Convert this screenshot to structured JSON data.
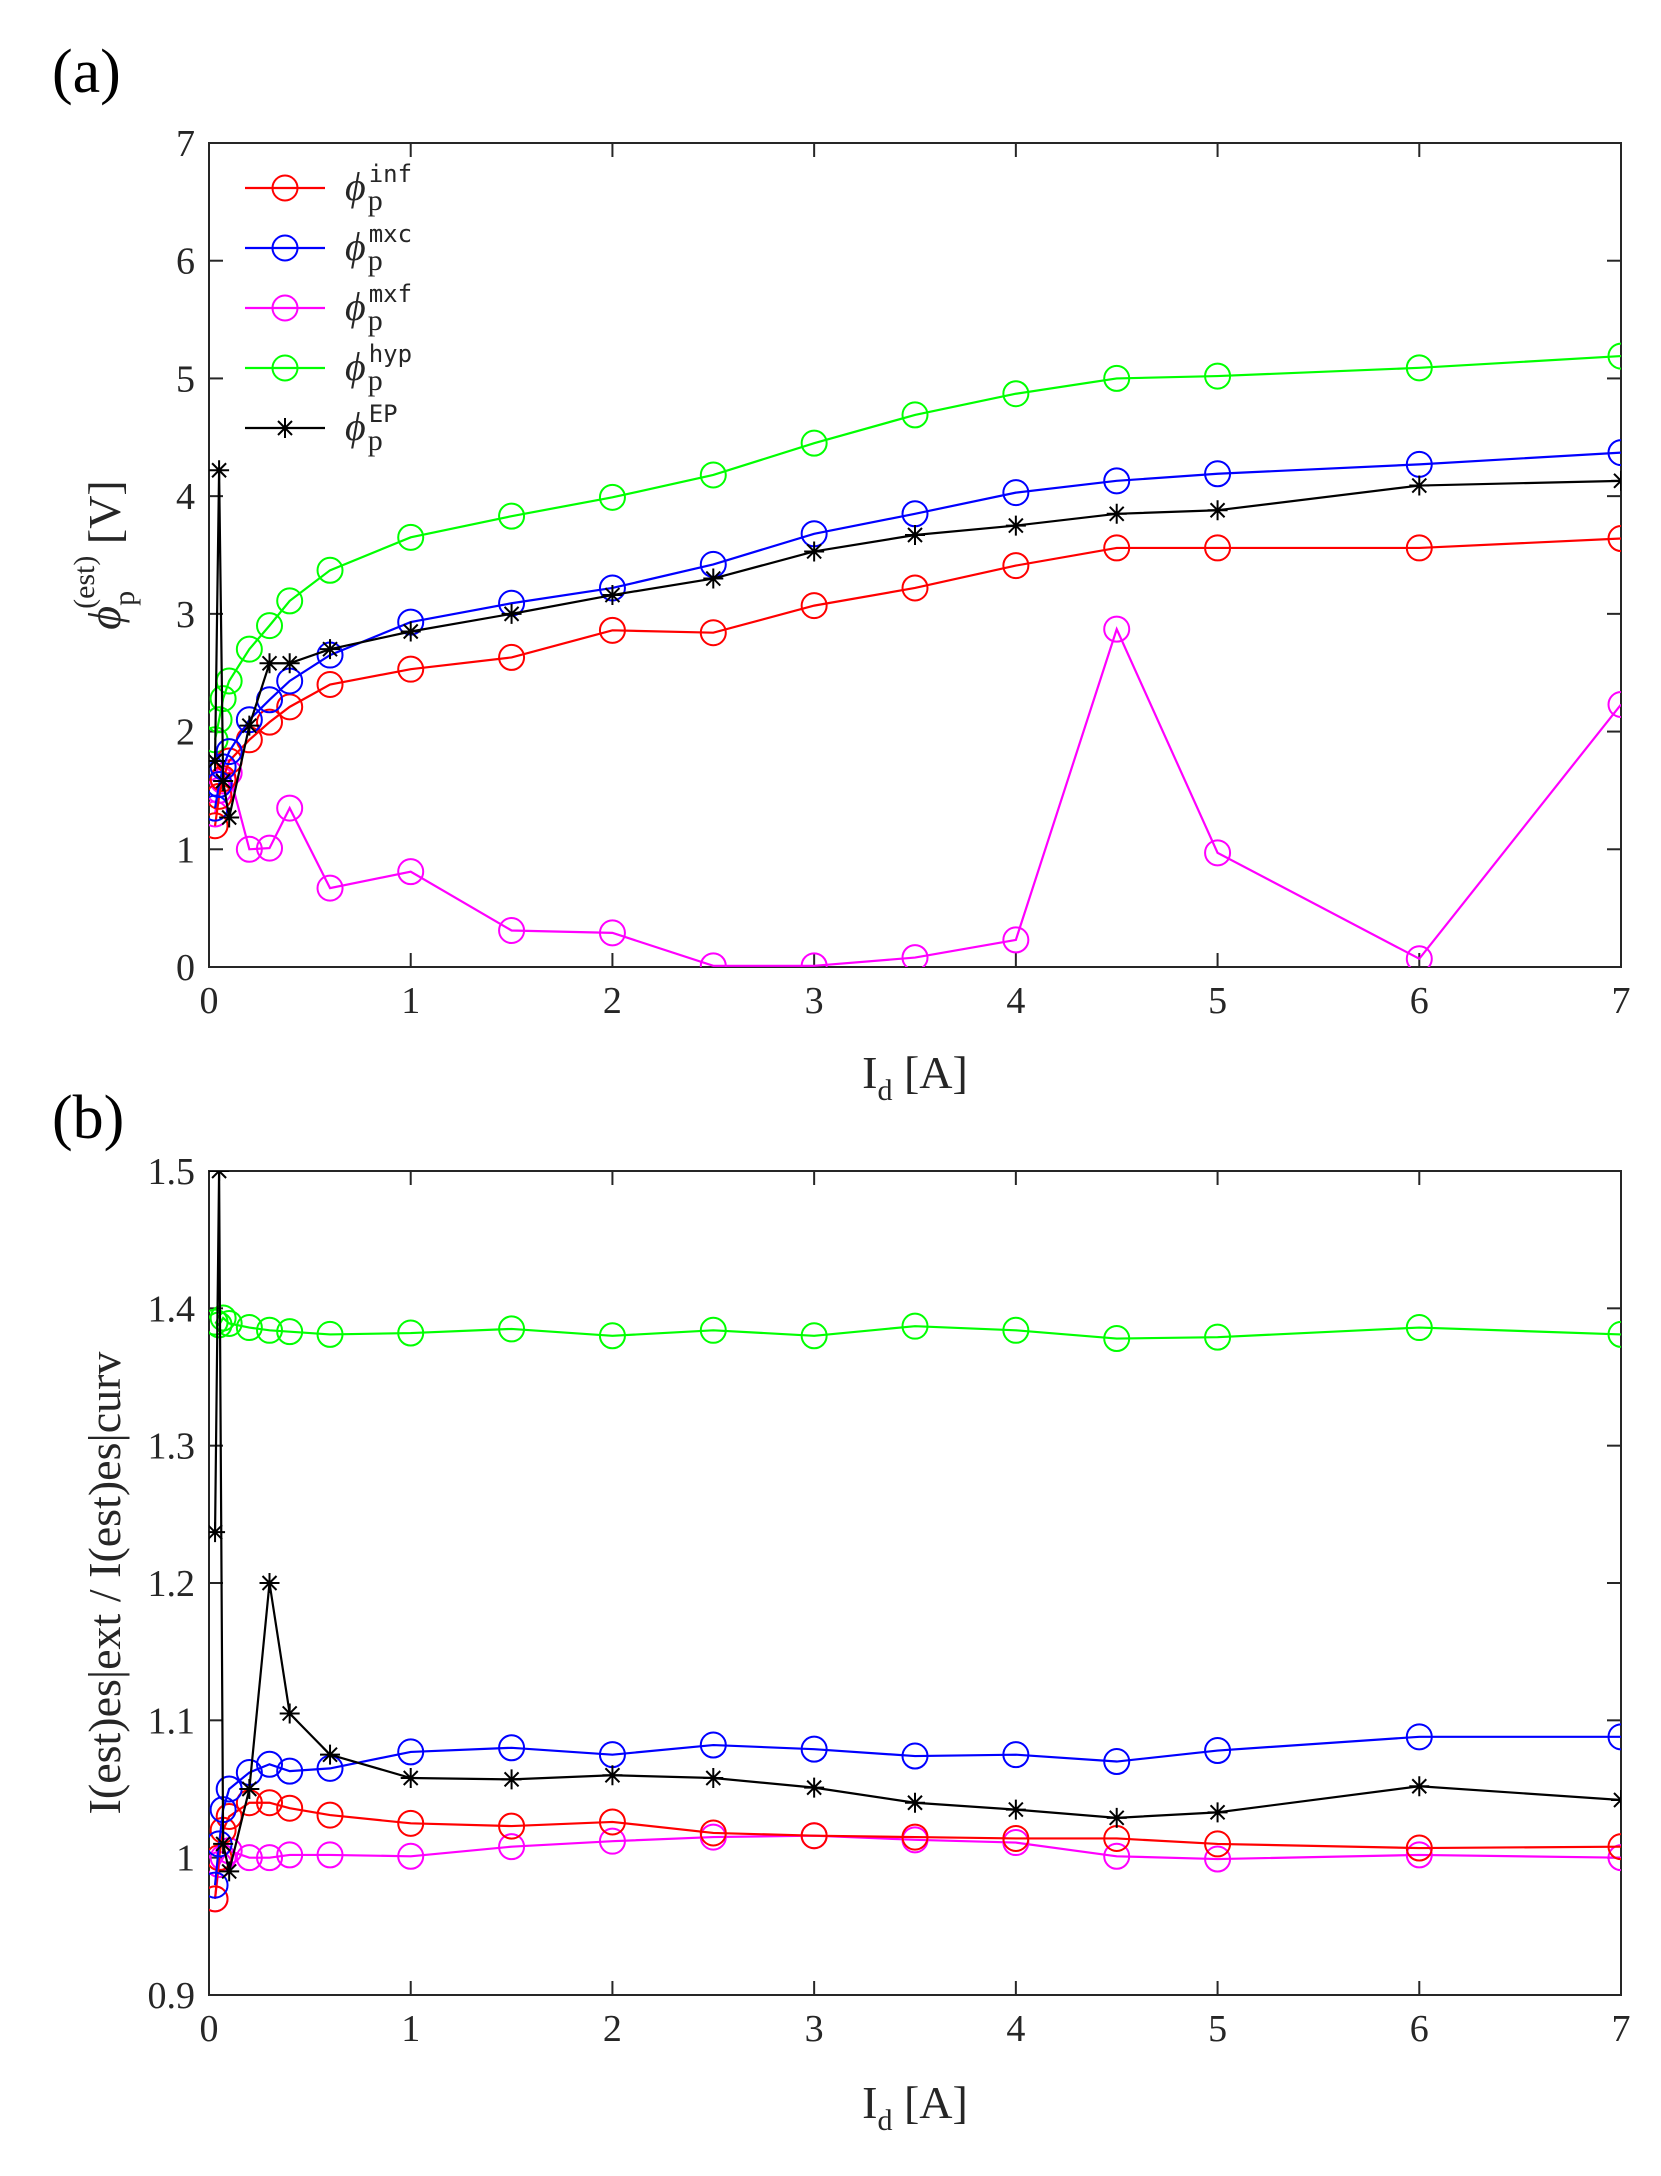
{
  "chart_data": [
    {
      "type": "line",
      "panel": "(a)",
      "xlabel": {
        "main": "I",
        "sub": "d",
        "unit": " [A]"
      },
      "ylabel": {
        "main": "ϕ",
        "sub": "p",
        "sup": "(est)",
        "unit": " [V]"
      },
      "xlim": [
        0,
        7
      ],
      "ylim": [
        0,
        7
      ],
      "xticks": [
        "0",
        "1",
        "2",
        "3",
        "4",
        "5",
        "6",
        "7"
      ],
      "yticks": [
        "0",
        "1",
        "2",
        "3",
        "4",
        "5",
        "6",
        "7"
      ],
      "grid": false,
      "legend_position": "top-left",
      "series": [
        {
          "name": "inf",
          "label_base": "ϕ",
          "label_sub": "p",
          "label_sup": "inf",
          "color": "#ff0000",
          "marker": "circle",
          "x": [
            0.03,
            0.05,
            0.07,
            0.1,
            0.2,
            0.3,
            0.4,
            0.6,
            1,
            1.5,
            2,
            2.5,
            3,
            3.5,
            4,
            4.5,
            5,
            6,
            7
          ],
          "y": [
            1.2,
            1.45,
            1.6,
            1.75,
            1.93,
            2.08,
            2.21,
            2.4,
            2.53,
            2.63,
            2.86,
            2.84,
            3.07,
            3.22,
            3.41,
            3.56,
            3.56,
            3.56,
            3.64
          ]
        },
        {
          "name": "mxc",
          "label_base": "ϕ",
          "label_sub": "p",
          "label_sup": "mxc",
          "color": "#0000ff",
          "marker": "circle",
          "x": [
            0.03,
            0.05,
            0.07,
            0.1,
            0.2,
            0.3,
            0.4,
            0.6,
            1,
            1.5,
            2,
            2.5,
            3,
            3.5,
            4,
            4.5,
            5,
            6,
            7
          ],
          "y": [
            1.35,
            1.55,
            1.7,
            1.83,
            2.1,
            2.27,
            2.43,
            2.65,
            2.93,
            3.09,
            3.22,
            3.42,
            3.68,
            3.85,
            4.03,
            4.13,
            4.19,
            4.27,
            4.37
          ]
        },
        {
          "name": "mxf",
          "label_base": "ϕ",
          "label_sub": "p",
          "label_sup": "mxf",
          "color": "#ff00ff",
          "marker": "circle",
          "x": [
            0.03,
            0.05,
            0.07,
            0.1,
            0.2,
            0.3,
            0.4,
            0.6,
            1,
            1.5,
            2,
            2.5,
            3,
            3.5,
            4,
            4.5,
            5,
            6,
            7
          ],
          "y": [
            1.3,
            1.5,
            1.58,
            1.65,
            1.0,
            1.01,
            1.35,
            0.67,
            0.81,
            0.31,
            0.29,
            0.01,
            0.01,
            0.08,
            0.23,
            2.87,
            0.97,
            0.07,
            2.23
          ]
        },
        {
          "name": "hyp",
          "label_base": "ϕ",
          "label_sub": "p",
          "label_sup": "hyp",
          "color": "#00ff00",
          "marker": "circle",
          "x": [
            0.03,
            0.05,
            0.07,
            0.1,
            0.2,
            0.3,
            0.4,
            0.6,
            1,
            1.5,
            2,
            2.5,
            3,
            3.5,
            4,
            4.5,
            5,
            6,
            7
          ],
          "y": [
            1.93,
            2.1,
            2.28,
            2.43,
            2.7,
            2.9,
            3.11,
            3.37,
            3.65,
            3.83,
            3.99,
            4.18,
            4.45,
            4.69,
            4.87,
            5.0,
            5.02,
            5.09,
            5.19
          ]
        },
        {
          "name": "EP",
          "label_base": "ϕ",
          "label_sub": "p",
          "label_sup": "EP",
          "color": "#000000",
          "marker": "star",
          "x": [
            0.03,
            0.05,
            0.07,
            0.1,
            0.2,
            0.3,
            0.4,
            0.6,
            1,
            1.5,
            2,
            2.5,
            3,
            3.5,
            4,
            4.5,
            5,
            6,
            7
          ],
          "y": [
            1.75,
            4.22,
            1.58,
            1.27,
            2.05,
            2.58,
            2.58,
            2.7,
            2.85,
            3.0,
            3.16,
            3.3,
            3.53,
            3.67,
            3.75,
            3.85,
            3.88,
            4.09,
            4.13
          ]
        }
      ]
    },
    {
      "type": "line",
      "panel": "(b)",
      "xlabel": {
        "main": "I",
        "sub": "d",
        "unit": " [A]"
      },
      "ylabel": {
        "text": "I(est)es|ext / I(est)es|curv"
      },
      "xlim": [
        0,
        7
      ],
      "ylim": [
        0.9,
        1.5
      ],
      "xticks": [
        "0",
        "1",
        "2",
        "3",
        "4",
        "5",
        "6",
        "7"
      ],
      "yticks": [
        "0.9",
        "1",
        "1.1",
        "1.2",
        "1.3",
        "1.4",
        "1.5"
      ],
      "grid": false,
      "series": [
        {
          "name": "inf",
          "color": "#ff0000",
          "marker": "circle",
          "x": [
            0.03,
            0.05,
            0.07,
            0.1,
            0.2,
            0.3,
            0.4,
            0.6,
            1,
            1.5,
            2,
            2.5,
            3,
            3.5,
            4,
            4.5,
            5,
            6,
            7
          ],
          "y": [
            0.97,
            1.0,
            1.02,
            1.03,
            1.04,
            1.04,
            1.036,
            1.031,
            1.025,
            1.023,
            1.026,
            1.018,
            1.016,
            1.015,
            1.014,
            1.014,
            1.01,
            1.007,
            1.008
          ]
        },
        {
          "name": "mxc",
          "color": "#0000ff",
          "marker": "circle",
          "x": [
            0.03,
            0.05,
            0.07,
            0.1,
            0.2,
            0.3,
            0.4,
            0.6,
            1,
            1.5,
            2,
            2.5,
            3,
            3.5,
            4,
            4.5,
            5,
            6,
            7
          ],
          "y": [
            0.98,
            1.01,
            1.035,
            1.05,
            1.062,
            1.068,
            1.063,
            1.065,
            1.077,
            1.08,
            1.075,
            1.082,
            1.079,
            1.074,
            1.075,
            1.07,
            1.078,
            1.088,
            1.088
          ]
        },
        {
          "name": "mxf",
          "color": "#ff00ff",
          "marker": "circle",
          "x": [
            0.03,
            0.05,
            0.07,
            0.1,
            0.2,
            0.3,
            0.4,
            0.6,
            1,
            1.5,
            2,
            2.5,
            3,
            3.5,
            4,
            4.5,
            5,
            6,
            7
          ],
          "y": [
            0.97,
            0.995,
            1.0,
            1.005,
            1.0,
            1.0,
            1.002,
            1.002,
            1.001,
            1.008,
            1.012,
            1.015,
            1.016,
            1.013,
            1.011,
            1.001,
            0.999,
            1.002,
            1.0
          ]
        },
        {
          "name": "hyp",
          "color": "#00ff00",
          "marker": "circle",
          "x": [
            0.03,
            0.05,
            0.07,
            0.1,
            0.2,
            0.3,
            0.4,
            0.6,
            1,
            1.5,
            2,
            2.5,
            3,
            3.5,
            4,
            4.5,
            5,
            6,
            7
          ],
          "y": [
            1.39,
            1.388,
            1.393,
            1.389,
            1.386,
            1.384,
            1.383,
            1.381,
            1.382,
            1.385,
            1.38,
            1.384,
            1.38,
            1.387,
            1.384,
            1.378,
            1.379,
            1.386,
            1.381
          ]
        },
        {
          "name": "EP",
          "color": "#000000",
          "marker": "star",
          "x": [
            0.03,
            0.05,
            0.07,
            0.1,
            0.2,
            0.3,
            0.4,
            0.6,
            1,
            1.5,
            2,
            2.5,
            3,
            3.5,
            4,
            4.5,
            5,
            6,
            7
          ],
          "y": [
            1.237,
            1.5,
            1.01,
            0.99,
            1.05,
            1.2,
            1.105,
            1.075,
            1.058,
            1.057,
            1.06,
            1.058,
            1.051,
            1.04,
            1.035,
            1.029,
            1.033,
            1.052,
            1.042
          ]
        }
      ]
    }
  ]
}
